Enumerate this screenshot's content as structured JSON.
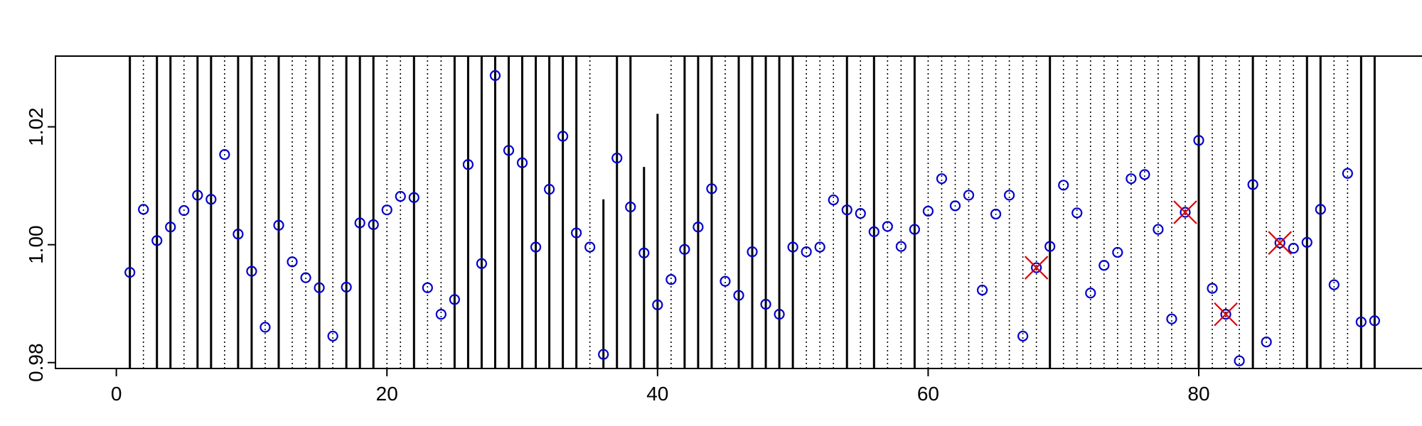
{
  "chart_data": {
    "type": "scatter",
    "title": "",
    "xlabel": "",
    "ylabel": "",
    "xlim": [
      -4.5,
      96.5
    ],
    "ylim": [
      0.979,
      1.032
    ],
    "x_ticks": [
      0,
      20,
      40,
      60,
      80
    ],
    "y_ticks": [
      0.98,
      1.0,
      1.02
    ],
    "x_tick_labels": [
      "0",
      "20",
      "40",
      "60",
      "80"
    ],
    "y_tick_labels": [
      "0.98",
      "1.00",
      "1.02"
    ],
    "grid": false,
    "legend": "none",
    "colors": {
      "points": "#0000cc",
      "flagged": "#dd0000",
      "lines": "#000000"
    },
    "points": {
      "x": [
        1,
        2,
        3,
        4,
        5,
        6,
        7,
        8,
        9,
        10,
        11,
        12,
        13,
        14,
        15,
        16,
        17,
        18,
        19,
        20,
        21,
        22,
        23,
        24,
        25,
        26,
        27,
        28,
        29,
        30,
        31,
        32,
        33,
        34,
        35,
        36,
        37,
        38,
        39,
        40,
        41,
        42,
        43,
        44,
        45,
        46,
        47,
        48,
        49,
        50,
        51,
        52,
        53,
        54,
        55,
        56,
        57,
        58,
        59,
        60,
        61,
        62,
        63,
        64,
        65,
        66,
        67,
        68,
        69,
        70,
        71,
        72,
        73,
        74,
        75,
        76,
        77,
        78,
        79,
        80,
        81,
        82,
        83,
        84,
        85,
        86,
        87,
        88,
        89,
        90,
        91,
        92,
        93
      ],
      "y": [
        0.9953,
        1.006,
        1.0007,
        1.003,
        1.0058,
        1.0084,
        1.0077,
        1.0153,
        1.0018,
        0.9955,
        0.986,
        1.0033,
        0.9971,
        0.9944,
        0.9927,
        0.9845,
        0.9928,
        1.0037,
        1.0034,
        1.0059,
        1.0082,
        1.008,
        0.9927,
        0.9882,
        0.9907,
        1.0136,
        0.9968,
        1.0287,
        1.016,
        1.0139,
        0.9996,
        1.0094,
        1.0184,
        1.002,
        0.9996,
        0.9814,
        1.0147,
        1.0064,
        0.9986,
        0.9898,
        0.9941,
        0.9992,
        1.003,
        1.0095,
        0.9938,
        0.9914,
        0.9988,
        0.9899,
        0.9882,
        0.9996,
        0.9988,
        0.9996,
        1.0076,
        1.0059,
        1.0053,
        1.0022,
        1.0031,
        0.9997,
        1.0026,
        1.0057,
        1.0112,
        1.0066,
        1.0084,
        0.9923,
        1.0052,
        1.0084,
        0.9845,
        0.9961,
        0.9997,
        1.0101,
        1.0054,
        0.9918,
        0.9965,
        0.9987,
        1.0112,
        1.0119,
        1.0026,
        0.9874,
        1.0055,
        1.0177,
        0.9926,
        0.9882,
        0.9803,
        1.0102,
        0.9835,
        1.0003,
        0.9994,
        1.0004,
        1.006,
        0.9932,
        1.0121,
        0.9869,
        0.9871
      ]
    },
    "flagged_points": {
      "x": [
        68,
        79,
        82,
        86
      ],
      "y": [
        0.9961,
        1.0055,
        0.9882,
        1.0003
      ]
    },
    "solid_vlines": [
      {
        "x": 1,
        "top": null
      },
      {
        "x": 3,
        "top": null
      },
      {
        "x": 4,
        "top": null
      },
      {
        "x": 6,
        "top": null
      },
      {
        "x": 7,
        "top": null
      },
      {
        "x": 9,
        "top": null
      },
      {
        "x": 10,
        "top": null
      },
      {
        "x": 12,
        "top": null
      },
      {
        "x": 15,
        "top": null
      },
      {
        "x": 17,
        "top": null
      },
      {
        "x": 18,
        "top": null
      },
      {
        "x": 19,
        "top": null
      },
      {
        "x": 22,
        "top": null
      },
      {
        "x": 25,
        "top": null
      },
      {
        "x": 26,
        "top": null
      },
      {
        "x": 27,
        "top": null
      },
      {
        "x": 28,
        "top": null
      },
      {
        "x": 29,
        "top": null
      },
      {
        "x": 30,
        "top": null
      },
      {
        "x": 31,
        "top": null
      },
      {
        "x": 32,
        "top": null
      },
      {
        "x": 33,
        "top": null
      },
      {
        "x": 34,
        "top": null
      },
      {
        "x": 36,
        "top": 1.0077
      },
      {
        "x": 37,
        "top": null
      },
      {
        "x": 38,
        "top": null
      },
      {
        "x": 39,
        "top": 1.0132
      },
      {
        "x": 40,
        "top": 1.0222
      },
      {
        "x": 42,
        "top": null
      },
      {
        "x": 43,
        "top": null
      },
      {
        "x": 44,
        "top": null
      },
      {
        "x": 46,
        "top": null
      },
      {
        "x": 47,
        "top": null
      },
      {
        "x": 48,
        "top": null
      },
      {
        "x": 49,
        "top": null
      },
      {
        "x": 50,
        "top": null
      },
      {
        "x": 54,
        "top": null
      },
      {
        "x": 56,
        "top": null
      },
      {
        "x": 59,
        "top": null
      },
      {
        "x": 69,
        "top": null
      },
      {
        "x": 80,
        "top": null
      },
      {
        "x": 84,
        "top": null
      },
      {
        "x": 88,
        "top": null
      },
      {
        "x": 89,
        "top": null
      },
      {
        "x": 92,
        "top": null
      },
      {
        "x": 93,
        "top": null
      }
    ],
    "dotted_vlines": [
      2,
      5,
      8,
      11,
      13,
      14,
      16,
      20,
      21,
      23,
      24,
      35,
      41,
      45,
      51,
      52,
      53,
      55,
      57,
      58,
      60,
      61,
      62,
      63,
      64,
      65,
      66,
      67,
      68,
      70,
      71,
      72,
      73,
      74,
      75,
      76,
      77,
      78,
      79,
      81,
      82,
      83,
      85,
      86,
      87,
      90,
      91
    ]
  }
}
